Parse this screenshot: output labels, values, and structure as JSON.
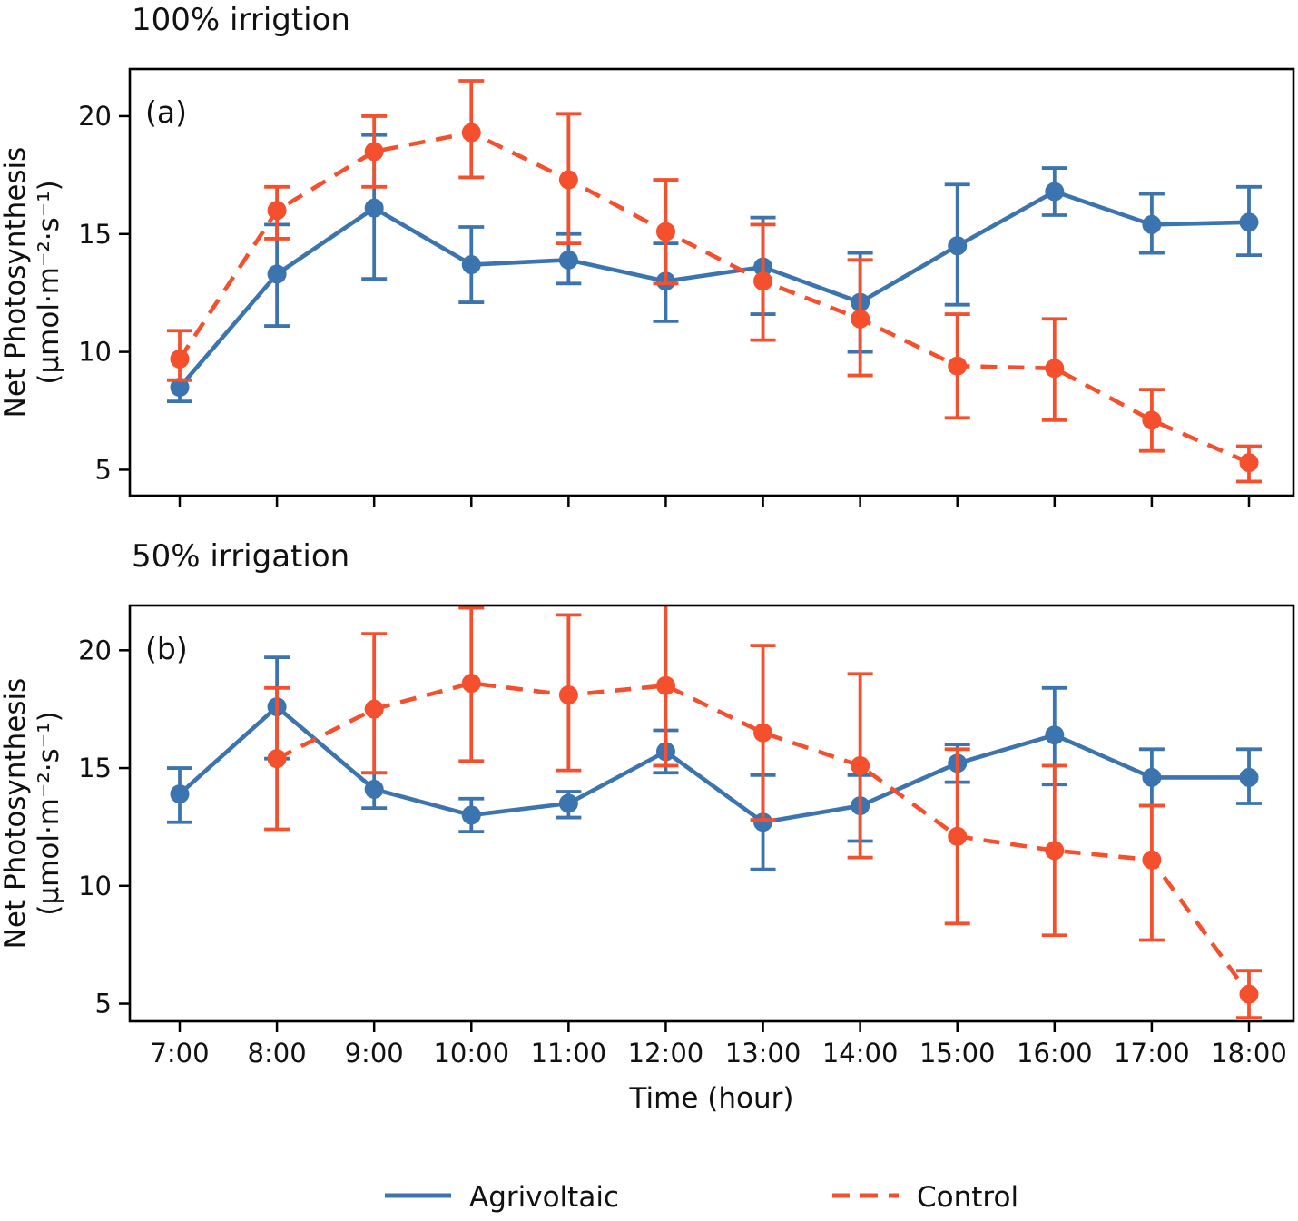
{
  "figure": {
    "xlabel": "Time (hour)",
    "ylabel_line1": "Net Photosynthesis",
    "ylabel_line2": "(μmol·m⁻²·s⁻¹)",
    "legend": [
      {
        "label": "Agrivoltaic",
        "color": "#3b74ae",
        "style": "solid"
      },
      {
        "label": "Control",
        "color": "#f4502d",
        "style": "dashed"
      }
    ],
    "colors": {
      "agrivoltaic": "#3b74ae",
      "control": "#f4502d",
      "axis": "#000000",
      "text": "#111111"
    }
  },
  "chart_data": [
    {
      "type": "line",
      "panel": "a",
      "panel_label": "(a)",
      "title": "100% irrigtion",
      "x": [
        "7:00",
        "8:00",
        "9:00",
        "10:00",
        "11:00",
        "12:00",
        "13:00",
        "14:00",
        "15:00",
        "16:00",
        "17:00",
        "18:00"
      ],
      "ylim": [
        3.9,
        22.0
      ],
      "yticks": [
        5,
        10,
        15,
        20
      ],
      "grid": false,
      "series": [
        {
          "name": "Agrivoltaic",
          "style": "solid",
          "color": "#3b74ae",
          "values": [
            8.5,
            13.3,
            16.1,
            13.7,
            13.9,
            13.0,
            13.6,
            12.1,
            14.5,
            16.8,
            15.4,
            15.5
          ],
          "err_lo": [
            7.9,
            11.1,
            13.1,
            12.1,
            12.9,
            11.3,
            11.6,
            10.0,
            12.0,
            15.8,
            14.2,
            14.1
          ],
          "err_hi": [
            8.8,
            15.4,
            19.2,
            15.3,
            15.0,
            14.6,
            15.7,
            14.2,
            17.1,
            17.8,
            16.7,
            17.0
          ]
        },
        {
          "name": "Control",
          "style": "dashed",
          "color": "#f4502d",
          "values": [
            9.7,
            16.0,
            18.5,
            19.3,
            17.3,
            15.1,
            13.0,
            11.4,
            9.4,
            9.3,
            7.1,
            5.3
          ],
          "err_lo": [
            8.8,
            14.8,
            17.0,
            17.4,
            14.6,
            12.9,
            10.5,
            9.0,
            7.2,
            7.1,
            5.8,
            4.5
          ],
          "err_hi": [
            10.9,
            17.0,
            20.0,
            21.5,
            20.1,
            17.3,
            15.4,
            13.9,
            11.6,
            11.4,
            8.4,
            6.0
          ]
        }
      ]
    },
    {
      "type": "line",
      "panel": "b",
      "panel_label": "(b)",
      "title": "50% irrigation",
      "x": [
        "7:00",
        "8:00",
        "9:00",
        "10:00",
        "11:00",
        "12:00",
        "13:00",
        "14:00",
        "15:00",
        "16:00",
        "17:00",
        "18:00"
      ],
      "ylim": [
        4.25,
        21.9
      ],
      "yticks": [
        5,
        10,
        15,
        20
      ],
      "grid": false,
      "series": [
        {
          "name": "Agrivoltaic",
          "style": "solid",
          "color": "#3b74ae",
          "values": [
            13.9,
            17.6,
            14.1,
            13.0,
            13.5,
            15.7,
            12.7,
            13.4,
            15.2,
            16.4,
            14.6,
            14.6
          ],
          "err_lo": [
            12.7,
            15.4,
            13.3,
            12.3,
            12.9,
            14.8,
            10.7,
            11.9,
            14.4,
            14.3,
            13.4,
            13.5
          ],
          "err_hi": [
            15.0,
            19.7,
            14.8,
            13.7,
            14.0,
            16.6,
            14.7,
            14.7,
            16.0,
            18.4,
            15.8,
            15.8
          ]
        },
        {
          "name": "Control",
          "style": "dashed",
          "color": "#f4502d",
          "values": [
            null,
            15.4,
            17.5,
            18.6,
            18.1,
            18.5,
            16.5,
            15.1,
            12.1,
            11.5,
            11.1,
            5.4
          ],
          "err_lo": [
            null,
            12.4,
            14.8,
            15.3,
            14.9,
            15.1,
            12.8,
            11.2,
            8.4,
            7.9,
            7.7,
            4.4
          ],
          "err_hi": [
            null,
            18.4,
            20.7,
            21.8,
            21.5,
            22.3,
            20.2,
            19.0,
            15.8,
            15.1,
            13.4,
            6.4
          ]
        }
      ]
    }
  ]
}
